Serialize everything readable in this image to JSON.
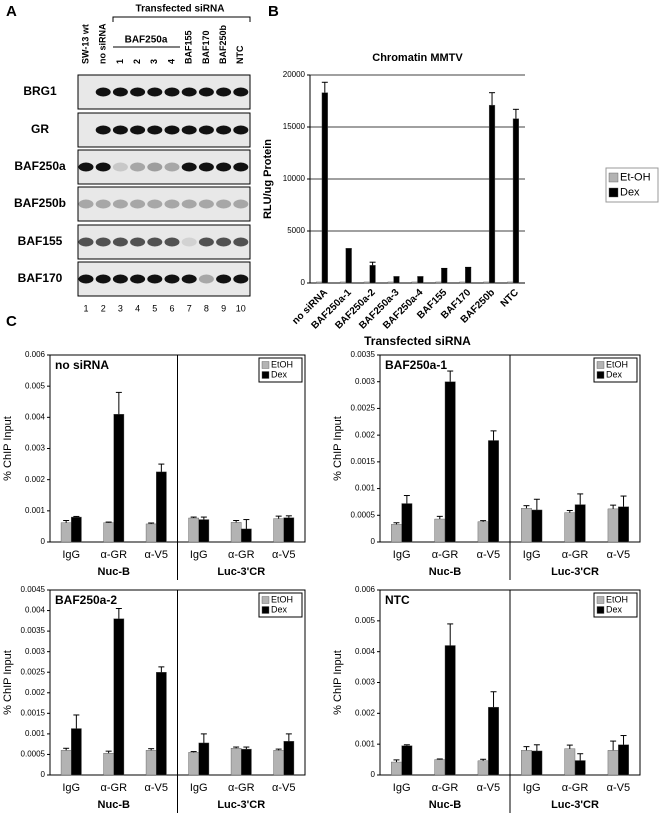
{
  "panel_labels": [
    "A",
    "B",
    "C"
  ],
  "blot": {
    "header": "Transfected siRNA",
    "subheader": "BAF250a",
    "lanes": [
      "SW-13 wt",
      "no siRNA",
      "1",
      "2",
      "3",
      "4",
      "BAF155",
      "BAF170",
      "BAF250b",
      "NTC"
    ],
    "rows": [
      "BRG1",
      "GR",
      "BAF250a",
      "BAF250b",
      "BAF155",
      "BAF170"
    ],
    "lane_numbers": [
      "1",
      "2",
      "3",
      "4",
      "5",
      "6",
      "7",
      "8",
      "9",
      "10"
    ]
  },
  "chart_data": [
    {
      "type": "bar",
      "title": "Chromatin MMTV",
      "x_label": "Transfected siRNA",
      "y_label": "RLU/ug Protein",
      "categories": [
        "no siRNA",
        "BAF250a-1",
        "BAF250a-2",
        "BAF250a-3",
        "BAF250a-4",
        "BAF155",
        "BAF170",
        "BAF250b",
        "NTC"
      ],
      "series": [
        {
          "name": "Et-OH",
          "color": "#b3b3b3",
          "values": [
            100,
            100,
            100,
            100,
            100,
            100,
            100,
            100,
            100
          ]
        },
        {
          "name": "Dex",
          "color": "#000000",
          "values": [
            18300,
            3300,
            1700,
            600,
            600,
            1400,
            1500,
            17100,
            15800
          ],
          "errors": [
            1000,
            0,
            300,
            0,
            0,
            0,
            0,
            1200,
            900
          ]
        }
      ],
      "ylim": [
        0,
        20000
      ],
      "yticks": [
        0,
        5000,
        10000,
        15000,
        20000
      ],
      "grid": true,
      "legend": "right"
    },
    {
      "type": "bar",
      "title": "no siRNA",
      "y_label": "% ChIP Input",
      "categories": [
        "IgG",
        "α-GR",
        "α-V5",
        "IgG",
        "α-GR",
        "α-V5"
      ],
      "groups": [
        "Nuc-B",
        "Luc-3'CR"
      ],
      "series": [
        {
          "name": "EtOH",
          "color": "#b3b3b3",
          "values": [
            0.00062,
            0.00062,
            0.00058,
            0.00077,
            0.00063,
            0.00075
          ],
          "errors": [
            7e-05,
            2e-05,
            3e-05,
            3e-05,
            6e-05,
            8e-05
          ]
        },
        {
          "name": "Dex",
          "color": "#000000",
          "values": [
            0.0008,
            0.0041,
            0.00225,
            0.00072,
            0.00042,
            0.00078
          ],
          "errors": [
            2e-05,
            0.0007,
            0.00025,
            8e-05,
            0.0003,
            6e-05
          ]
        }
      ],
      "ylim": [
        0,
        0.006
      ],
      "yticks": [
        0,
        0.001,
        0.002,
        0.003,
        0.004,
        0.005,
        0.006
      ],
      "grid": false,
      "legend": "upper right"
    },
    {
      "type": "bar",
      "title": "BAF250a-1",
      "y_label": "% ChIP Input",
      "categories": [
        "IgG",
        "α-GR",
        "α-V5",
        "IgG",
        "α-GR",
        "α-V5"
      ],
      "groups": [
        "Nuc-B",
        "Luc-3'CR"
      ],
      "series": [
        {
          "name": "EtOH",
          "color": "#b3b3b3",
          "values": [
            0.00033,
            0.00043,
            0.00038,
            0.00063,
            0.00055,
            0.00062
          ],
          "errors": [
            3e-05,
            5e-05,
            2e-05,
            5e-05,
            4e-05,
            7e-05
          ]
        },
        {
          "name": "Dex",
          "color": "#000000",
          "values": [
            0.00072,
            0.003,
            0.0019,
            0.0006,
            0.0007,
            0.00066
          ],
          "errors": [
            0.00015,
            0.0002,
            0.00018,
            0.0002,
            0.0002,
            0.0002
          ]
        }
      ],
      "ylim": [
        0,
        0.0035
      ],
      "yticks": [
        0,
        0.0005,
        0.001,
        0.0015,
        0.002,
        0.0025,
        0.003,
        0.0035
      ],
      "grid": false,
      "legend": "upper right"
    },
    {
      "type": "bar",
      "title": "BAF250a-2",
      "y_label": "% ChIP Input",
      "categories": [
        "IgG",
        "α-GR",
        "α-V5",
        "IgG",
        "α-GR",
        "α-V5"
      ],
      "groups": [
        "Nuc-B",
        "Luc-3'CR"
      ],
      "series": [
        {
          "name": "EtOH",
          "color": "#b3b3b3",
          "values": [
            0.0006,
            0.00053,
            0.0006,
            0.00055,
            0.00065,
            0.0006
          ],
          "errors": [
            5e-05,
            5e-05,
            4e-05,
            2e-05,
            3e-05,
            3e-05
          ]
        },
        {
          "name": "Dex",
          "color": "#000000",
          "values": [
            0.00113,
            0.0038,
            0.0025,
            0.00078,
            0.00063,
            0.00082
          ],
          "errors": [
            0.00033,
            0.00025,
            0.00013,
            0.00022,
            5e-05,
            0.00018
          ]
        }
      ],
      "ylim": [
        0,
        0.0045
      ],
      "yticks": [
        0,
        0.0005,
        0.001,
        0.0015,
        0.002,
        0.0025,
        0.003,
        0.0035,
        0.004,
        0.0045
      ],
      "grid": false,
      "legend": "upper right"
    },
    {
      "type": "bar",
      "title": "NTC",
      "y_label": "% ChIP Input",
      "categories": [
        "IgG",
        "α-GR",
        "α-V5",
        "IgG",
        "α-GR",
        "α-V5"
      ],
      "groups": [
        "Nuc-B",
        "Luc-3'CR"
      ],
      "series": [
        {
          "name": "EtOH",
          "color": "#b3b3b3",
          "values": [
            0.00042,
            0.0005,
            0.00046,
            0.0008,
            0.00085,
            0.0008
          ],
          "errors": [
            7e-05,
            2e-05,
            5e-05,
            0.00012,
            0.00012,
            0.0003
          ]
        },
        {
          "name": "Dex",
          "color": "#000000",
          "values": [
            0.00095,
            0.0042,
            0.0022,
            0.00078,
            0.00047,
            0.00098
          ],
          "errors": [
            3e-05,
            0.0007,
            0.0005,
            0.0002,
            0.00022,
            0.0003
          ]
        }
      ],
      "ylim": [
        0,
        0.006
      ],
      "yticks": [
        0,
        0.001,
        0.002,
        0.003,
        0.004,
        0.005,
        0.006
      ],
      "grid": false,
      "legend": "upper right"
    }
  ]
}
